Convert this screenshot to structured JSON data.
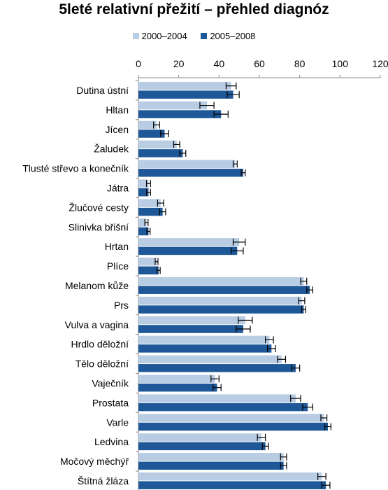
{
  "chart_data": {
    "type": "bar",
    "orientation": "horizontal",
    "title": "5leté relativní přežití – přehled diagnóz",
    "xlabel": "",
    "ylabel": "",
    "xlim": [
      0,
      120
    ],
    "xticks": [
      0,
      20,
      40,
      60,
      80,
      100,
      120
    ],
    "legend_position": "top",
    "grid": false,
    "error_bars": true,
    "categories": [
      "Dutina ústní",
      "Hltan",
      "Jícen",
      "Žaludek",
      "Tlusté střevo a konečník",
      "Játra",
      "Žlučové cesty",
      "Slinivka břišní",
      "Hrtan",
      "Plíce",
      "Melanom kůže",
      "Prs",
      "Vulva a vagina",
      "Hrdlo děložní",
      "Tělo děložní",
      "Vaječník",
      "Prostata",
      "Varle",
      "Ledvina",
      "Močový měchýř",
      "Štítná žláza"
    ],
    "series": [
      {
        "name": "2000–2004",
        "color": "#b8cce4",
        "values": [
          46,
          34,
          9,
          19,
          48,
          5,
          11,
          4,
          50,
          9,
          82,
          81,
          53,
          65,
          71,
          38,
          78,
          92,
          61,
          72,
          91
        ],
        "error": [
          2.5,
          3.5,
          1.5,
          1.5,
          1,
          1,
          1.5,
          0.8,
          3,
          0.7,
          1.5,
          1.5,
          3.5,
          2,
          2,
          2,
          2.5,
          1.5,
          2,
          1.5,
          2
        ]
      },
      {
        "name": "2005–2008",
        "color": "#1f5898",
        "values": [
          47,
          41,
          13,
          22,
          52,
          5,
          12,
          5,
          49,
          10,
          85,
          82,
          52,
          66,
          78,
          39,
          84,
          94,
          63,
          72,
          93
        ],
        "error": [
          3,
          3.5,
          2,
          1.5,
          1,
          1,
          1.5,
          0.8,
          3,
          0.8,
          1.5,
          1,
          3.5,
          2,
          2,
          2,
          2.5,
          1.5,
          1.5,
          1.5,
          2
        ]
      }
    ]
  }
}
